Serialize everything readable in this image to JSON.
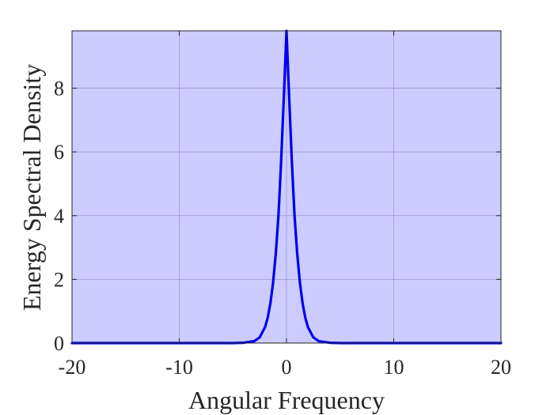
{
  "chart_data": {
    "type": "line",
    "title": "",
    "xlabel": "Angular Frequency",
    "ylabel": "Energy Spectral Density",
    "xlim": [
      -20,
      20
    ],
    "ylim": [
      0,
      9.8
    ],
    "x_ticks": [
      -20,
      -10,
      0,
      10,
      20
    ],
    "x_tick_labels": [
      "-20",
      "-10",
      "0",
      "10",
      "20"
    ],
    "y_ticks": [
      0,
      2,
      4,
      6,
      8
    ],
    "y_tick_labels": [
      "0",
      "2",
      "4",
      "6",
      "8"
    ],
    "grid": true,
    "legend": "none",
    "colors": {
      "plot_background": "#ccccff",
      "line": "#0000ee",
      "grid": "#9a9ad8",
      "axes": "#262626"
    },
    "series": [
      {
        "x": [
          -20,
          -10,
          -5,
          -4,
          -3,
          -2.5,
          -2,
          -1.75,
          -1.5,
          -1.25,
          -1,
          -0.75,
          -0.5,
          -0.25,
          0,
          0.25,
          0.5,
          0.75,
          1,
          1.25,
          1.5,
          1.75,
          2,
          2.5,
          3,
          4,
          5,
          10,
          20
        ],
        "y": [
          0,
          0,
          0,
          0.01,
          0.06,
          0.18,
          0.5,
          0.8,
          1.25,
          1.9,
          2.8,
          4.0,
          5.7,
          7.7,
          9.8,
          7.7,
          5.7,
          4.0,
          2.8,
          1.9,
          1.25,
          0.8,
          0.5,
          0.18,
          0.06,
          0.01,
          0,
          0,
          0
        ]
      }
    ]
  }
}
